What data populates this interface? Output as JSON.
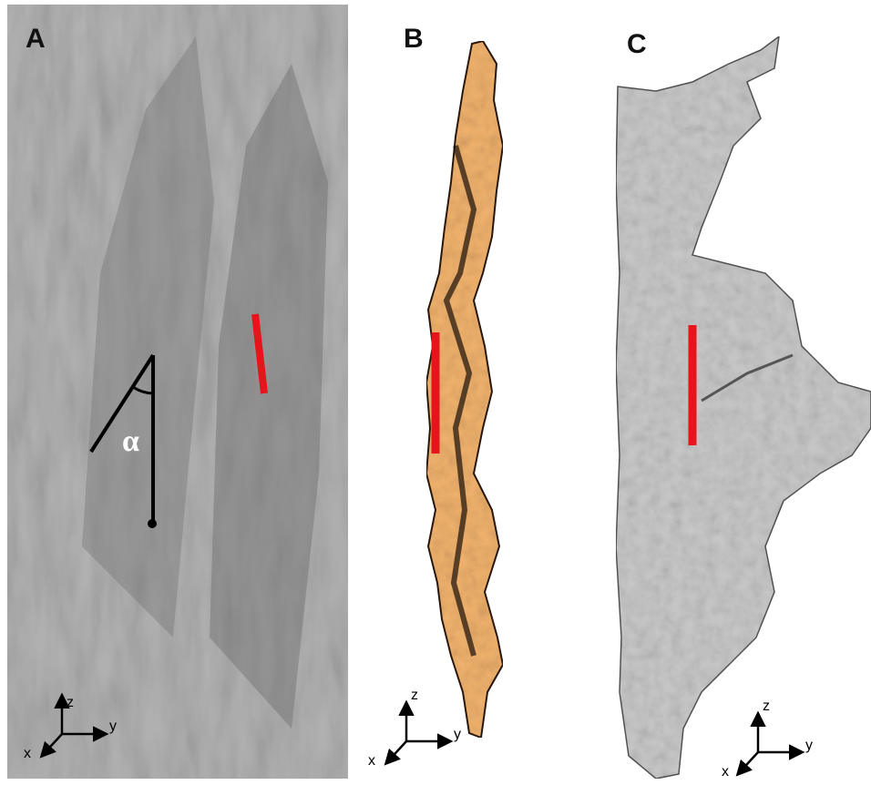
{
  "panels": [
    {
      "label": "A",
      "annotation": "α",
      "axes": {
        "z": "z",
        "y": "y",
        "x": "x"
      }
    },
    {
      "label": "B",
      "axes": {
        "z": "z",
        "y": "y",
        "x": "x"
      }
    },
    {
      "label": "C",
      "axes": {
        "z": "z",
        "y": "y",
        "x": "x"
      }
    }
  ]
}
